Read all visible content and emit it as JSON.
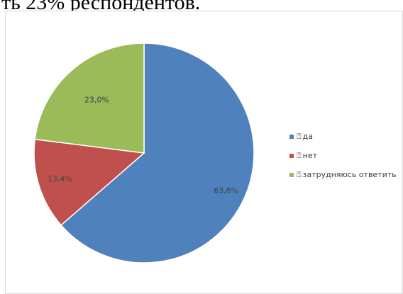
{
  "document": {
    "text_fragment": "ть 23% респондентов."
  },
  "chart_data": {
    "type": "pie",
    "categories": [
      "да",
      "нет",
      "затрудняюсь ответить"
    ],
    "values": [
      63.6,
      13.4,
      23.0
    ],
    "data_labels": [
      "63,6%",
      "13,4%",
      "23,0%"
    ],
    "colors": [
      "#4F81BD",
      "#C0504D",
      "#9BBB59"
    ],
    "legend_position": "right",
    "legend_marker_glyph": "⍰"
  }
}
